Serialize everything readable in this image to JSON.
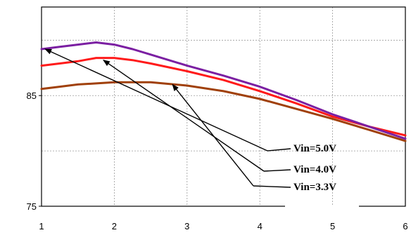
{
  "chart_data": {
    "type": "line",
    "title": "",
    "xlabel": "",
    "ylabel": "",
    "xlim": [
      1,
      6
    ],
    "ylim": [
      75,
      93
    ],
    "grid": true,
    "x_ticks": [
      "1",
      "2",
      "3",
      "4",
      "5",
      "6"
    ],
    "y_ticks": [
      "75",
      "85"
    ],
    "series": [
      {
        "name": "Vin=5.0V",
        "color": "#7b1fa2",
        "x": [
          1,
          1.25,
          1.5,
          1.75,
          2,
          2.25,
          2.5,
          3,
          3.5,
          4,
          4.5,
          5,
          5.5,
          6
        ],
        "y": [
          89.2,
          89.4,
          89.6,
          89.8,
          89.6,
          89.2,
          88.7,
          87.7,
          86.8,
          85.8,
          84.6,
          83.3,
          82.2,
          81.1
        ]
      },
      {
        "name": "Vin=4.0V",
        "color": "#ff1a1a",
        "x": [
          1,
          1.25,
          1.5,
          1.75,
          2,
          2.25,
          2.5,
          3,
          3.5,
          4,
          4.5,
          5,
          5.5,
          6
        ],
        "y": [
          87.7,
          87.9,
          88.1,
          88.4,
          88.4,
          88.2,
          87.9,
          87.2,
          86.4,
          85.4,
          84.3,
          83.1,
          82.2,
          81.4
        ]
      },
      {
        "name": "Vin=3.3V",
        "color": "#a0400a",
        "x": [
          1,
          1.25,
          1.5,
          1.75,
          2,
          2.25,
          2.5,
          3,
          3.5,
          4,
          4.5,
          5,
          5.5,
          6
        ],
        "y": [
          85.6,
          85.8,
          86.0,
          86.1,
          86.2,
          86.2,
          86.2,
          85.9,
          85.4,
          84.7,
          83.8,
          82.9,
          81.9,
          80.9
        ]
      }
    ],
    "annotations": [
      {
        "text": "Vin=5.0V",
        "series": 0,
        "arrow_to": [
          1.05,
          89.2
        ]
      },
      {
        "text": "Vin=4.0V",
        "series": 1,
        "arrow_to": [
          1.85,
          88.2
        ]
      },
      {
        "text": "Vin=3.3V",
        "series": 2,
        "arrow_to": [
          2.8,
          86.0
        ]
      }
    ]
  }
}
